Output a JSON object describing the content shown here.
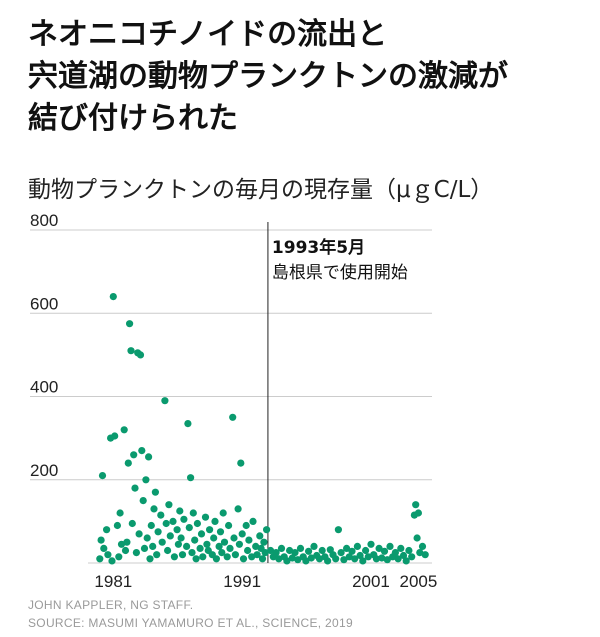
{
  "title_lines": [
    "ネオニコチノイドの流出と",
    "宍道湖の動物プランクトンの激減が",
    "結び付けられた"
  ],
  "subtitle": "動物プランクトンの毎月の現存量（μｇC/L）",
  "credits": {
    "line1": "JOHN KAPPLER, NG STAFF.",
    "line2": "SOURCE: MASUMI YAMAMURO ET AL., SCIENCE, 2019"
  },
  "colors": {
    "points": "#0a9a6e",
    "gridline": "#cccccc",
    "marker_line": "#222222"
  },
  "chart_data": {
    "type": "scatter",
    "title": "動物プランクトンの毎月の現存量（μｇC/L）",
    "xlabel": "",
    "ylabel": "",
    "xlim": [
      1980.5,
      2005.5
    ],
    "ylim": [
      0,
      800
    ],
    "yticks": [
      200,
      400,
      600,
      800
    ],
    "xtick_labels": [
      "1981",
      "1991",
      "2001",
      "2005"
    ],
    "xticks": [
      1982,
      1991.5,
      2001,
      2004.5
    ],
    "grid": "horizontal",
    "annotation": {
      "x": 1993.4,
      "line1": "1993年5月",
      "line2": "島根県で使用開始"
    },
    "series": [
      {
        "points": [
          [
            1981.0,
            10
          ],
          [
            1981.1,
            55
          ],
          [
            1981.2,
            210
          ],
          [
            1981.3,
            35
          ],
          [
            1981.5,
            80
          ],
          [
            1981.6,
            20
          ],
          [
            1981.8,
            300
          ],
          [
            1981.9,
            5
          ],
          [
            1982.0,
            640
          ],
          [
            1982.1,
            305
          ],
          [
            1982.3,
            90
          ],
          [
            1982.4,
            15
          ],
          [
            1982.5,
            120
          ],
          [
            1982.6,
            45
          ],
          [
            1982.8,
            320
          ],
          [
            1982.9,
            30
          ],
          [
            1983.0,
            50
          ],
          [
            1983.1,
            240
          ],
          [
            1983.2,
            575
          ],
          [
            1983.3,
            510
          ],
          [
            1983.4,
            95
          ],
          [
            1983.5,
            260
          ],
          [
            1983.6,
            180
          ],
          [
            1983.7,
            25
          ],
          [
            1983.8,
            505
          ],
          [
            1983.9,
            70
          ],
          [
            1984.0,
            500
          ],
          [
            1984.1,
            270
          ],
          [
            1984.2,
            150
          ],
          [
            1984.3,
            35
          ],
          [
            1984.4,
            200
          ],
          [
            1984.5,
            60
          ],
          [
            1984.6,
            255
          ],
          [
            1984.7,
            10
          ],
          [
            1984.8,
            90
          ],
          [
            1984.9,
            40
          ],
          [
            1985.0,
            130
          ],
          [
            1985.1,
            170
          ],
          [
            1985.2,
            20
          ],
          [
            1985.3,
            75
          ],
          [
            1985.5,
            115
          ],
          [
            1985.6,
            50
          ],
          [
            1985.8,
            390
          ],
          [
            1985.9,
            95
          ],
          [
            1986.0,
            30
          ],
          [
            1986.1,
            140
          ],
          [
            1986.2,
            65
          ],
          [
            1986.4,
            100
          ],
          [
            1986.5,
            15
          ],
          [
            1986.7,
            80
          ],
          [
            1986.8,
            45
          ],
          [
            1986.9,
            125
          ],
          [
            1987.0,
            60
          ],
          [
            1987.1,
            20
          ],
          [
            1987.2,
            105
          ],
          [
            1987.4,
            40
          ],
          [
            1987.5,
            335
          ],
          [
            1987.6,
            85
          ],
          [
            1987.7,
            205
          ],
          [
            1987.8,
            25
          ],
          [
            1987.9,
            120
          ],
          [
            1988.0,
            55
          ],
          [
            1988.1,
            10
          ],
          [
            1988.2,
            95
          ],
          [
            1988.4,
            35
          ],
          [
            1988.5,
            70
          ],
          [
            1988.6,
            15
          ],
          [
            1988.8,
            110
          ],
          [
            1988.9,
            45
          ],
          [
            1989.0,
            30
          ],
          [
            1989.1,
            80
          ],
          [
            1989.3,
            20
          ],
          [
            1989.4,
            60
          ],
          [
            1989.5,
            100
          ],
          [
            1989.6,
            10
          ],
          [
            1989.8,
            40
          ],
          [
            1989.9,
            75
          ],
          [
            1990.0,
            25
          ],
          [
            1990.1,
            120
          ],
          [
            1990.2,
            50
          ],
          [
            1990.4,
            15
          ],
          [
            1990.5,
            90
          ],
          [
            1990.6,
            35
          ],
          [
            1990.8,
            350
          ],
          [
            1990.9,
            60
          ],
          [
            1991.0,
            20
          ],
          [
            1991.2,
            130
          ],
          [
            1991.3,
            45
          ],
          [
            1991.4,
            240
          ],
          [
            1991.5,
            70
          ],
          [
            1991.6,
            10
          ],
          [
            1991.8,
            90
          ],
          [
            1991.9,
            30
          ],
          [
            1992.0,
            55
          ],
          [
            1992.2,
            15
          ],
          [
            1992.3,
            100
          ],
          [
            1992.5,
            40
          ],
          [
            1992.6,
            20
          ],
          [
            1992.8,
            65
          ],
          [
            1992.9,
            35
          ],
          [
            1993.0,
            10
          ],
          [
            1993.1,
            50
          ],
          [
            1993.2,
            25
          ],
          [
            1993.3,
            80
          ],
          [
            1993.6,
            30
          ],
          [
            1993.8,
            15
          ],
          [
            1994.0,
            25
          ],
          [
            1994.2,
            10
          ],
          [
            1994.4,
            35
          ],
          [
            1994.6,
            15
          ],
          [
            1994.8,
            5
          ],
          [
            1995.0,
            30
          ],
          [
            1995.2,
            12
          ],
          [
            1995.4,
            25
          ],
          [
            1995.6,
            8
          ],
          [
            1995.8,
            35
          ],
          [
            1996.0,
            15
          ],
          [
            1996.2,
            5
          ],
          [
            1996.4,
            28
          ],
          [
            1996.6,
            12
          ],
          [
            1996.8,
            40
          ],
          [
            1997.0,
            18
          ],
          [
            1997.2,
            10
          ],
          [
            1997.4,
            30
          ],
          [
            1997.6,
            15
          ],
          [
            1997.8,
            5
          ],
          [
            1998.0,
            32
          ],
          [
            1998.2,
            20
          ],
          [
            1998.4,
            10
          ],
          [
            1998.6,
            80
          ],
          [
            1998.8,
            25
          ],
          [
            1999.0,
            8
          ],
          [
            1999.2,
            35
          ],
          [
            1999.4,
            15
          ],
          [
            1999.6,
            28
          ],
          [
            1999.8,
            10
          ],
          [
            2000.0,
            40
          ],
          [
            2000.2,
            18
          ],
          [
            2000.4,
            5
          ],
          [
            2000.6,
            30
          ],
          [
            2000.8,
            15
          ],
          [
            2001.0,
            45
          ],
          [
            2001.2,
            20
          ],
          [
            2001.4,
            10
          ],
          [
            2001.6,
            35
          ],
          [
            2001.8,
            12
          ],
          [
            2002.0,
            28
          ],
          [
            2002.2,
            8
          ],
          [
            2002.4,
            40
          ],
          [
            2002.6,
            15
          ],
          [
            2002.8,
            25
          ],
          [
            2003.0,
            10
          ],
          [
            2003.2,
            35
          ],
          [
            2003.4,
            18
          ],
          [
            2003.6,
            5
          ],
          [
            2003.8,
            30
          ],
          [
            2004.0,
            15
          ],
          [
            2004.2,
            115
          ],
          [
            2004.3,
            140
          ],
          [
            2004.4,
            60
          ],
          [
            2004.5,
            120
          ],
          [
            2004.6,
            25
          ],
          [
            2004.8,
            40
          ],
          [
            2005.0,
            20
          ]
        ]
      }
    ]
  }
}
